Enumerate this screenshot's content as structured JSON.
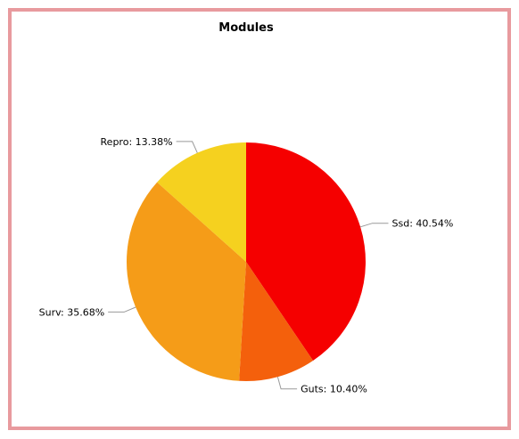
{
  "chart_data": {
    "type": "pie",
    "title": "Modules",
    "slices": [
      {
        "name": "Ssd",
        "label": "Ssd: 40.54%",
        "value": 40.54,
        "color": "#f50000"
      },
      {
        "name": "Guts",
        "label": "Guts: 10.40%",
        "value": 10.4,
        "color": "#f4600c"
      },
      {
        "name": "Surv",
        "label": "Surv: 35.68%",
        "value": 35.68,
        "color": "#f59c18"
      },
      {
        "name": "Repro",
        "label": "Repro: 13.38%",
        "value": 13.38,
        "color": "#f5d11f"
      }
    ],
    "legend": "none",
    "start_angle": "top, clockwise"
  },
  "colors": {
    "frame_border": "#e89a9e",
    "background": "#ffffff",
    "leader_line": "#999999"
  }
}
